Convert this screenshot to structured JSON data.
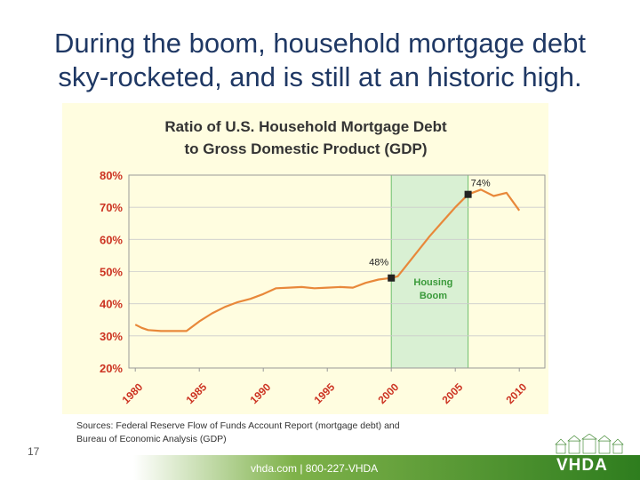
{
  "slide": {
    "title_line1": "During the boom, household mortgage debt",
    "title_line2": "sky-rocketed, and is still at an historic high.",
    "sources_line1": "Sources:  Federal Reserve Flow of Funds Account Report (mortgage debt) and",
    "sources_line2": "Bureau of Economic Analysis (GDP)",
    "page_number": "17",
    "footer_contact": "vhda.com | 800-227-VHDA",
    "logo_text": "VHDA"
  },
  "colors": {
    "title": "#1f3864",
    "line": "#e8883a",
    "axis_labels": "#d9534f",
    "tick_labels": "#cc3322",
    "highlight_fill": "#d9f0d3",
    "highlight_label": "#3a9a3a",
    "panel_background": "#fffde0",
    "footer_green": "#2e7d1e"
  },
  "chart_data": {
    "type": "line",
    "title_line1": "Ratio of U.S. Household Mortgage Debt",
    "title_line2": "to Gross Domestic Product (GDP)",
    "y_ticks": [
      {
        "value": 20,
        "label": "20%"
      },
      {
        "value": 30,
        "label": "30%"
      },
      {
        "value": 40,
        "label": "40%"
      },
      {
        "value": 50,
        "label": "50%"
      },
      {
        "value": 60,
        "label": "60%"
      },
      {
        "value": 70,
        "label": "70%"
      },
      {
        "value": 80,
        "label": "80%"
      }
    ],
    "x_ticks": [
      {
        "value": 1980,
        "label": "1980"
      },
      {
        "value": 1985,
        "label": "1985"
      },
      {
        "value": 1990,
        "label": "1990"
      },
      {
        "value": 1995,
        "label": "1995"
      },
      {
        "value": 2000,
        "label": "2000"
      },
      {
        "value": 2005,
        "label": "2005"
      },
      {
        "value": 2010,
        "label": "2010"
      }
    ],
    "xlim": [
      1979.5,
      2012
    ],
    "ylim": [
      20,
      80
    ],
    "grid": true,
    "series": [
      {
        "x": [
          1980,
          1980.5,
          1981,
          1982,
          1983,
          1984,
          1985,
          1986,
          1987,
          1988,
          1989,
          1990,
          1991,
          1992,
          1993,
          1994,
          1995,
          1996,
          1997,
          1998,
          1999,
          2000,
          2000.5,
          2001,
          2002,
          2003,
          2004,
          2005,
          2006,
          2007,
          2008,
          2009,
          2010
        ],
        "y": [
          33.5,
          32.5,
          31.8,
          31.5,
          31.5,
          31.5,
          34.5,
          37,
          39,
          40.5,
          41.5,
          43,
          44.8,
          45,
          45.2,
          44.8,
          45,
          45.2,
          45,
          46.5,
          47.5,
          48,
          48.5,
          51,
          56,
          61,
          65.5,
          70,
          74,
          75.5,
          73.5,
          74.5,
          69
        ]
      }
    ],
    "highlight": {
      "x_start": 2000,
      "x_end": 2006,
      "label_line1": "Housing",
      "label_line2": "Boom"
    },
    "annotations": [
      {
        "x": 2000,
        "y": 48,
        "label": "48%"
      },
      {
        "x": 2006,
        "y": 74,
        "label": "74%"
      }
    ]
  }
}
